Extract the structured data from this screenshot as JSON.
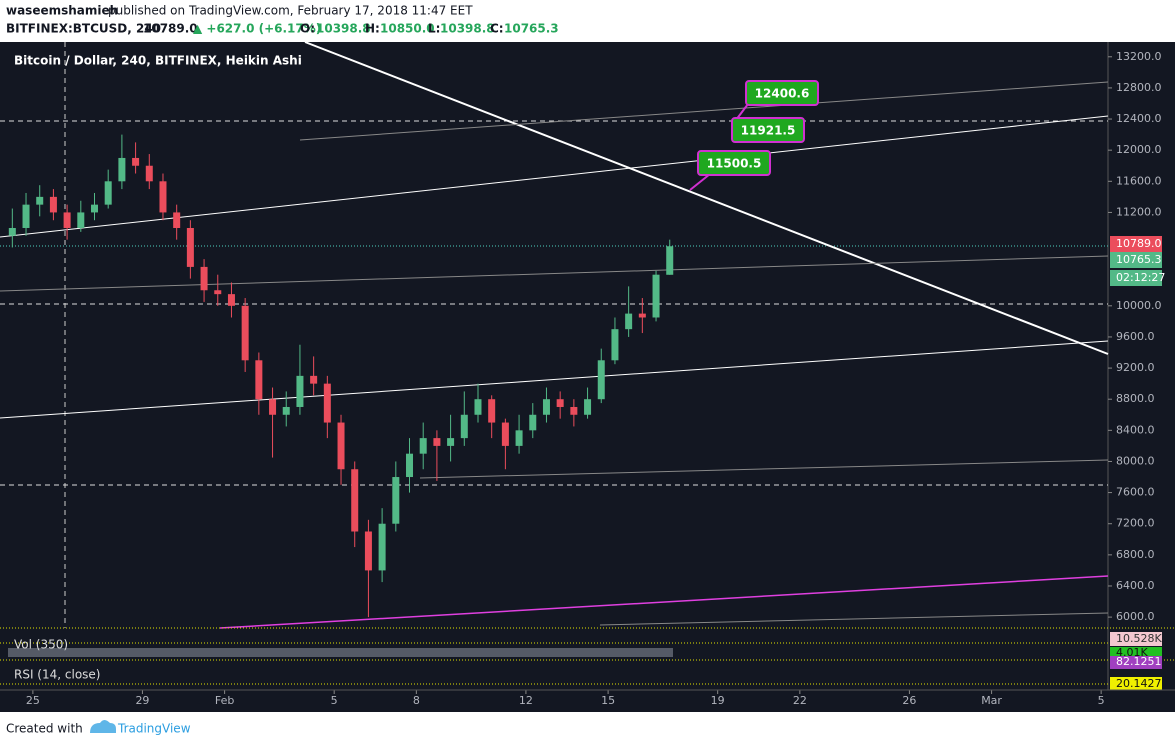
{
  "header": {
    "user": "waseemshamieh",
    "published": "published on TradingView.com, February 17, 2018 11:47 EET",
    "symbol": "BITFINEX:BTCUSD, 240",
    "last": "10789.0",
    "change": "▲ +627.0 (+6.17%)",
    "o_label": "O:",
    "o": "10398.8",
    "h_label": "H:",
    "h": "10850.0",
    "l_label": "L:",
    "l": "10398.8",
    "c_label": "C:",
    "c": "10765.3"
  },
  "chart_data": {
    "type": "candlestick",
    "title": "Bitcoin / Dollar, 240, BITFINEX, Heikin Ashi",
    "up_color": "#53b987",
    "down_color": "#eb4d5c",
    "x": [
      -0.75,
      -0.25,
      0.25,
      0.75,
      1.25,
      1.75,
      2.25,
      2.75,
      3.25,
      3.75,
      4.25,
      4.75,
      5.25,
      5.75,
      6.25,
      6.75,
      7.25,
      7.75,
      8.25,
      8.75,
      9.25,
      9.75,
      10.25,
      10.75,
      11.25,
      11.75,
      12.25,
      12.75,
      13.25,
      13.75,
      14.25,
      14.75,
      15.25,
      15.75,
      16.25,
      16.75,
      17.25,
      17.75,
      18.25,
      18.75,
      19.25,
      19.75,
      20.25,
      20.75,
      21.25,
      21.75,
      22.25,
      22.75,
      23.25
    ],
    "ohlc": [
      [
        10900,
        11250,
        10750,
        11000
      ],
      [
        11000,
        11450,
        10900,
        11300
      ],
      [
        11300,
        11550,
        11150,
        11400
      ],
      [
        11400,
        11500,
        11100,
        11200
      ],
      [
        11200,
        11300,
        10850,
        11000
      ],
      [
        11000,
        11350,
        10950,
        11200
      ],
      [
        11200,
        11450,
        11100,
        11300
      ],
      [
        11300,
        11750,
        11250,
        11600
      ],
      [
        11600,
        12200,
        11500,
        11900
      ],
      [
        11900,
        12100,
        11700,
        11800
      ],
      [
        11800,
        11950,
        11500,
        11600
      ],
      [
        11600,
        11700,
        11100,
        11200
      ],
      [
        11200,
        11300,
        10850,
        11000
      ],
      [
        11000,
        11100,
        10350,
        10500
      ],
      [
        10500,
        10600,
        10050,
        10200
      ],
      [
        10200,
        10400,
        10000,
        10150
      ],
      [
        10150,
        10300,
        9850,
        10000
      ],
      [
        10000,
        10100,
        9150,
        9300
      ],
      [
        9300,
        9400,
        8600,
        8800
      ],
      [
        8800,
        8950,
        8050,
        8600
      ],
      [
        8600,
        8900,
        8450,
        8700
      ],
      [
        8700,
        9500,
        8600,
        9100
      ],
      [
        9100,
        9350,
        8850,
        9000
      ],
      [
        9000,
        9100,
        8300,
        8500
      ],
      [
        8500,
        8600,
        7700,
        7900
      ],
      [
        7900,
        8000,
        6900,
        7100
      ],
      [
        7100,
        7250,
        6000,
        6600
      ],
      [
        6600,
        7400,
        6450,
        7200
      ],
      [
        7200,
        8000,
        7100,
        7800
      ],
      [
        7800,
        8300,
        7600,
        8100
      ],
      [
        8100,
        8500,
        7900,
        8300
      ],
      [
        8300,
        8400,
        7750,
        8200
      ],
      [
        8200,
        8600,
        8000,
        8300
      ],
      [
        8300,
        8900,
        8200,
        8600
      ],
      [
        8600,
        9000,
        8500,
        8800
      ],
      [
        8800,
        8850,
        8300,
        8500
      ],
      [
        8500,
        8550,
        7900,
        8200
      ],
      [
        8200,
        8600,
        8100,
        8400
      ],
      [
        8400,
        8750,
        8300,
        8600
      ],
      [
        8600,
        8950,
        8500,
        8800
      ],
      [
        8800,
        8900,
        8550,
        8700
      ],
      [
        8700,
        8800,
        8450,
        8600
      ],
      [
        8600,
        8950,
        8550,
        8800
      ],
      [
        8800,
        9450,
        8750,
        9300
      ],
      [
        9300,
        9850,
        9250,
        9700
      ],
      [
        9700,
        10250,
        9600,
        9900
      ],
      [
        9900,
        10100,
        9650,
        9850
      ],
      [
        9850,
        10450,
        9800,
        10400
      ],
      [
        10398.8,
        10850,
        10398.8,
        10765.3
      ]
    ],
    "xlim": [
      -1.2,
      39.25
    ],
    "xticks": [
      {
        "value": 0,
        "label": "25"
      },
      {
        "value": 4,
        "label": "29"
      },
      {
        "value": 7,
        "label": "Feb"
      },
      {
        "value": 11,
        "label": "5"
      },
      {
        "value": 14,
        "label": "8"
      },
      {
        "value": 18,
        "label": "12"
      },
      {
        "value": 21,
        "label": "15"
      },
      {
        "value": 25,
        "label": "19"
      },
      {
        "value": 28,
        "label": "22"
      },
      {
        "value": 32,
        "label": "26"
      },
      {
        "value": 35,
        "label": "Mar"
      },
      {
        "value": 39,
        "label": "5"
      }
    ],
    "ylim": [
      5860,
      13390
    ],
    "yticks": [
      {
        "value": 6000,
        "label": "6000.0"
      },
      {
        "value": 6400,
        "label": "6400.0"
      },
      {
        "value": 6800,
        "label": "6800.0"
      },
      {
        "value": 7200,
        "label": "7200.0"
      },
      {
        "value": 7600,
        "label": "7600.0"
      },
      {
        "value": 8000,
        "label": "8000.0"
      },
      {
        "value": 8400,
        "label": "8400.0"
      },
      {
        "value": 8800,
        "label": "8800.0"
      },
      {
        "value": 9200,
        "label": "9200.0"
      },
      {
        "value": 9600,
        "label": "9600.0"
      },
      {
        "value": 10000,
        "label": "10000.0"
      },
      {
        "value": 11200,
        "label": "11200.0"
      },
      {
        "value": 11600,
        "label": "11600.0"
      },
      {
        "value": 12000,
        "label": "12000.0"
      },
      {
        "value": 12400,
        "label": "12400.0"
      },
      {
        "value": 12800,
        "label": "12800.0"
      },
      {
        "value": 13200,
        "label": "13200.0"
      }
    ],
    "price_tags": [
      "10789.0",
      "10765.3",
      "02:12:27"
    ],
    "annotations": [
      "12400.6",
      "11921.5",
      "11500.5"
    ]
  },
  "volume_pane": {
    "title": "Vol (350)",
    "tags": [
      "10.528K",
      "4.01K"
    ]
  },
  "rsi_pane": {
    "title": "RSI (14, close)",
    "tags": [
      "82.1251",
      "20.1427"
    ]
  },
  "footer": {
    "created": "Created with",
    "brand": "TradingView"
  }
}
